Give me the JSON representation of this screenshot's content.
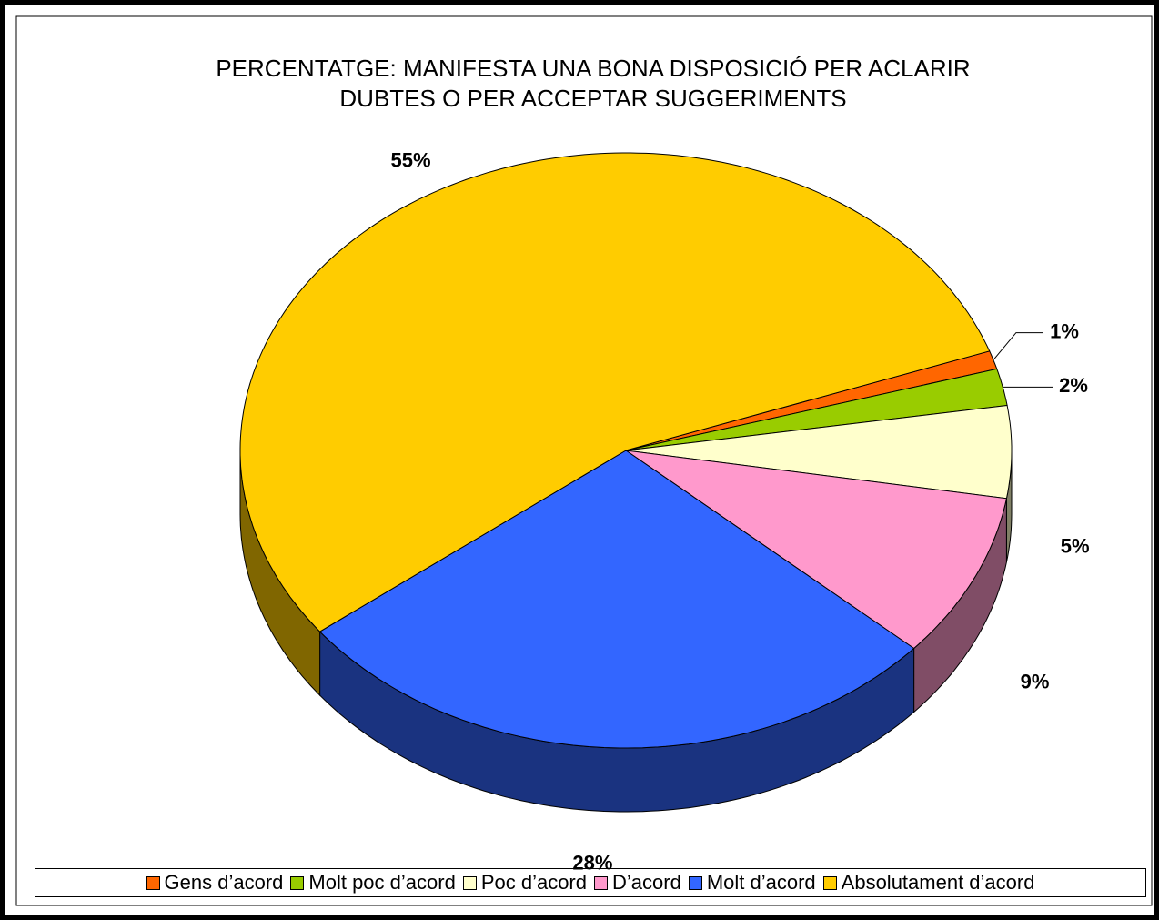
{
  "chart_data": {
    "type": "pie",
    "title": [
      "PERCENTATGE: MANIFESTA UNA BONA DISPOSICIÓ PER ACLARIR",
      "DUBTES O PER ACCEPTAR SUGGERIMENTS"
    ],
    "categories": [
      "Gens d’acord",
      "Molt poc d’acord",
      "Poc d’acord",
      "D’acord",
      "Molt d’acord",
      "Absolutament d’acord"
    ],
    "values": [
      1,
      2,
      5,
      9,
      28,
      55
    ],
    "value_labels": [
      "1%",
      "2%",
      "5%",
      "9%",
      "28%",
      "55%"
    ],
    "colors": [
      "#ff6600",
      "#99cc00",
      "#ffffcc",
      "#ff99cc",
      "#3366ff",
      "#ffcc00"
    ],
    "legend": "bottom",
    "three_d": true
  }
}
